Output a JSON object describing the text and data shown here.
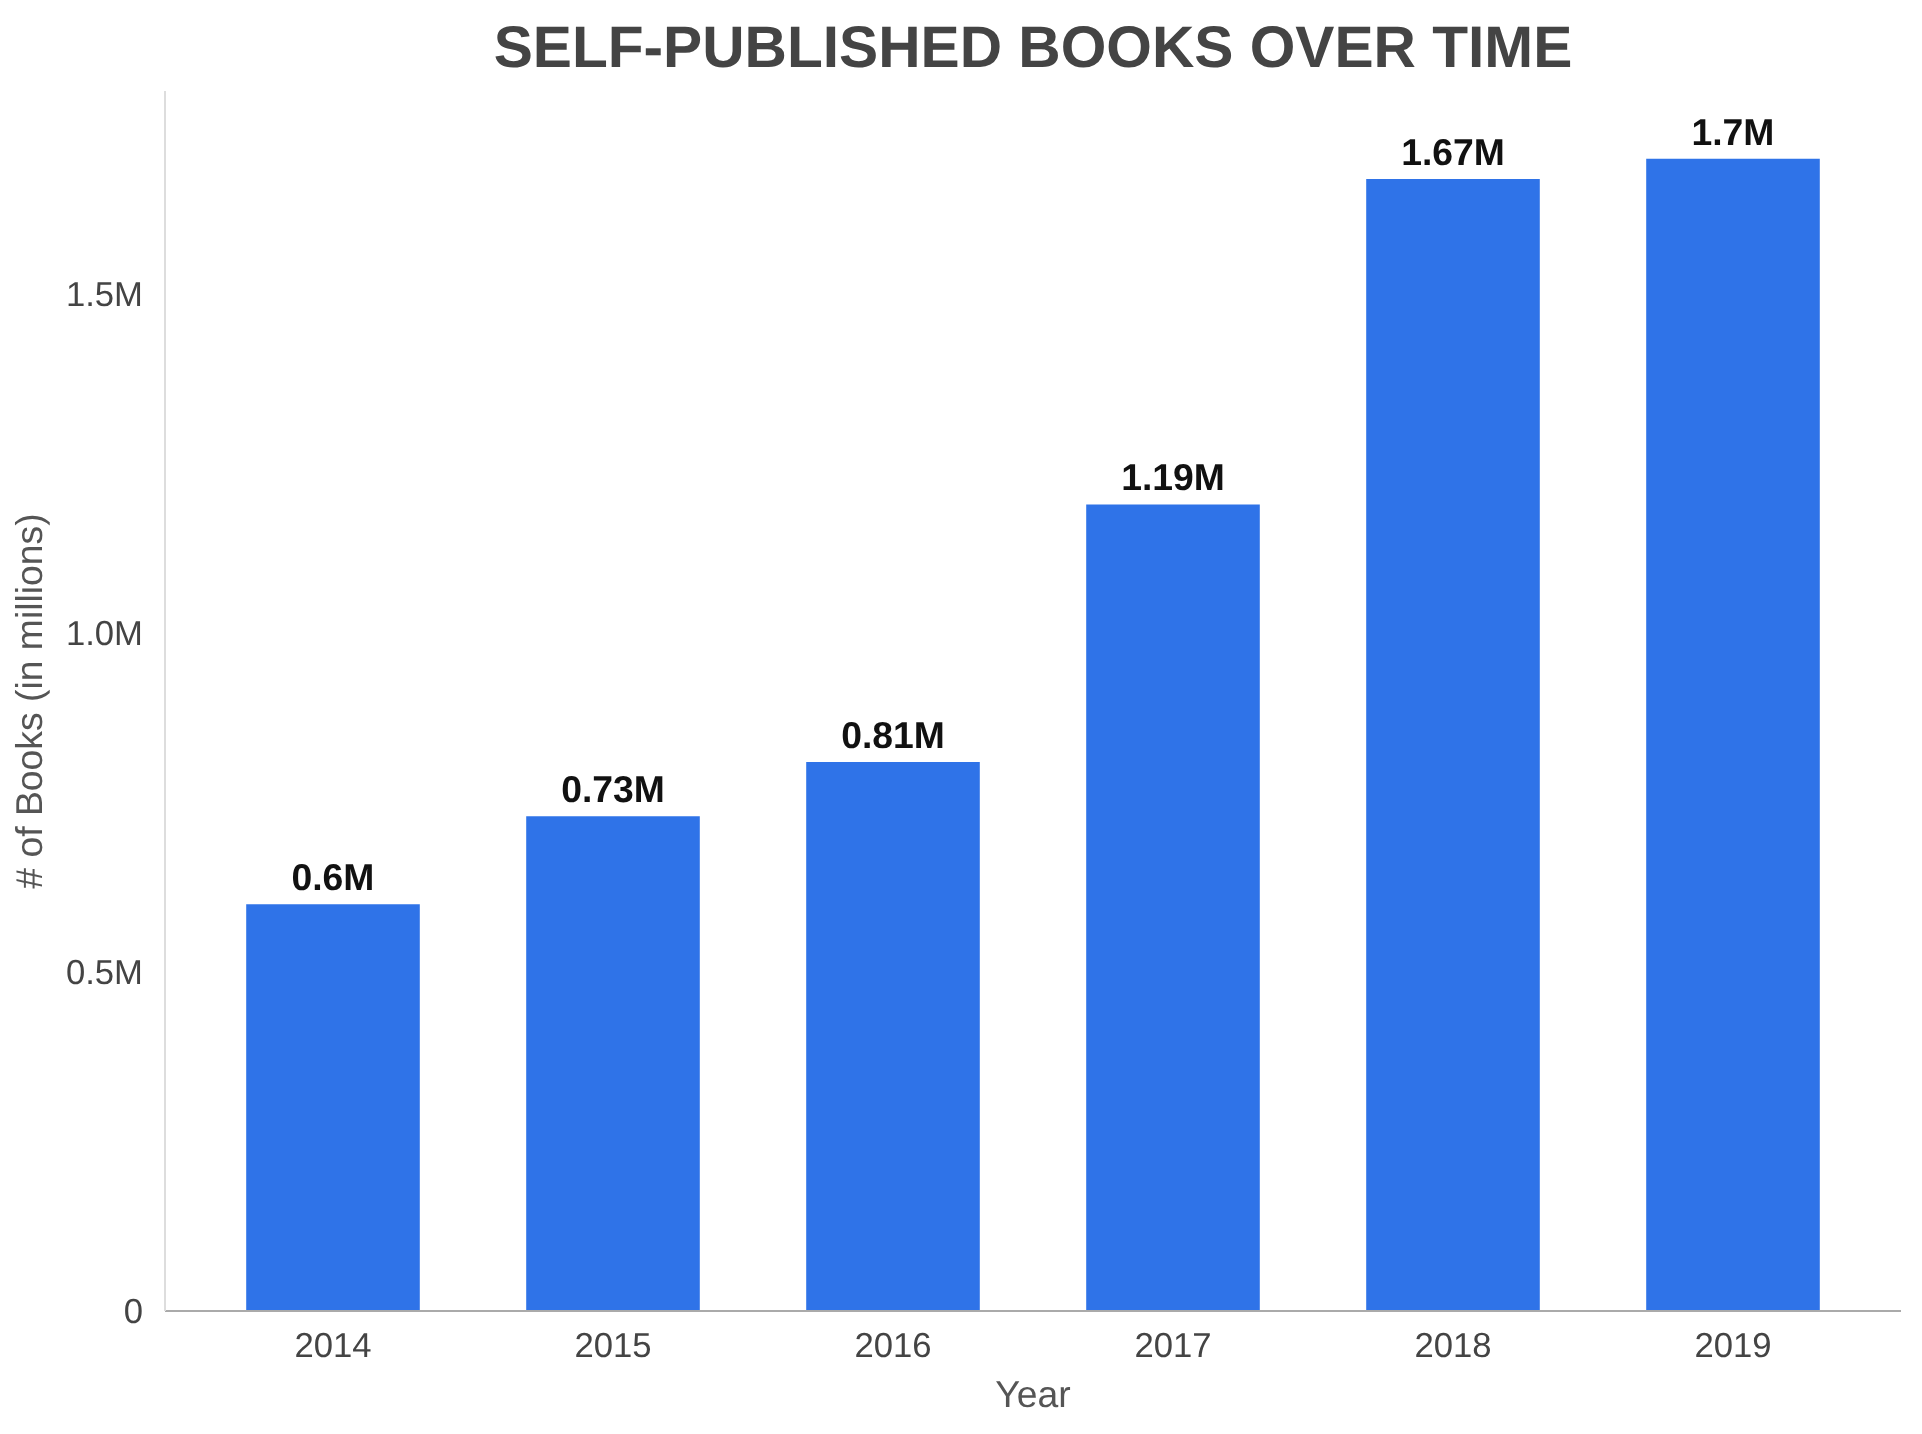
{
  "chart_data": {
    "type": "bar",
    "title": "SELF-PUBLISHED BOOKS OVER TIME",
    "xlabel": "Year",
    "ylabel": "# of Books (in millions)",
    "categories": [
      "2014",
      "2015",
      "2016",
      "2017",
      "2018",
      "2019"
    ],
    "values": [
      0.6,
      0.73,
      0.81,
      1.19,
      1.67,
      1.7
    ],
    "value_labels": [
      "0.6M",
      "0.73M",
      "0.81M",
      "1.19M",
      "1.67M",
      "1.7M"
    ],
    "color": "#2f73e8",
    "ylim": [
      0,
      1.8
    ],
    "yticks": [
      {
        "value": 0,
        "label": "0"
      },
      {
        "value": 0.5,
        "label": "0.5M"
      },
      {
        "value": 1.0,
        "label": "1.0M"
      },
      {
        "value": 1.5,
        "label": "1.5M"
      }
    ],
    "grid": false
  }
}
